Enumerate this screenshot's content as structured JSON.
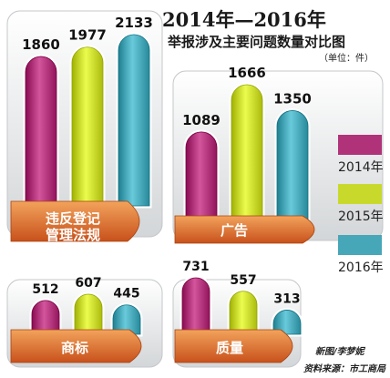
{
  "chart_data": {
    "type": "bar",
    "title": "2014年—2016年",
    "subtitle": "举报涉及主要问题数量对比图",
    "unit": "（单位：件）",
    "series": [
      {
        "name": "2014年",
        "color": "#b0337a"
      },
      {
        "name": "2015年",
        "color": "#c9d92c"
      },
      {
        "name": "2016年",
        "color": "#46a7b8"
      }
    ],
    "groups": [
      {
        "label_lines": [
          "违反登记",
          "管理法规"
        ],
        "values": [
          1860,
          1977,
          2133
        ]
      },
      {
        "label_lines": [
          "广告"
        ],
        "values": [
          1089,
          1666,
          1350
        ]
      },
      {
        "label_lines": [
          "商标"
        ],
        "values": [
          512,
          607,
          445
        ]
      },
      {
        "label_lines": [
          "质量"
        ],
        "values": [
          731,
          557,
          313
        ]
      }
    ]
  },
  "credits": {
    "author": "新图/李梦妮",
    "source": "资料来源：市工商局"
  }
}
